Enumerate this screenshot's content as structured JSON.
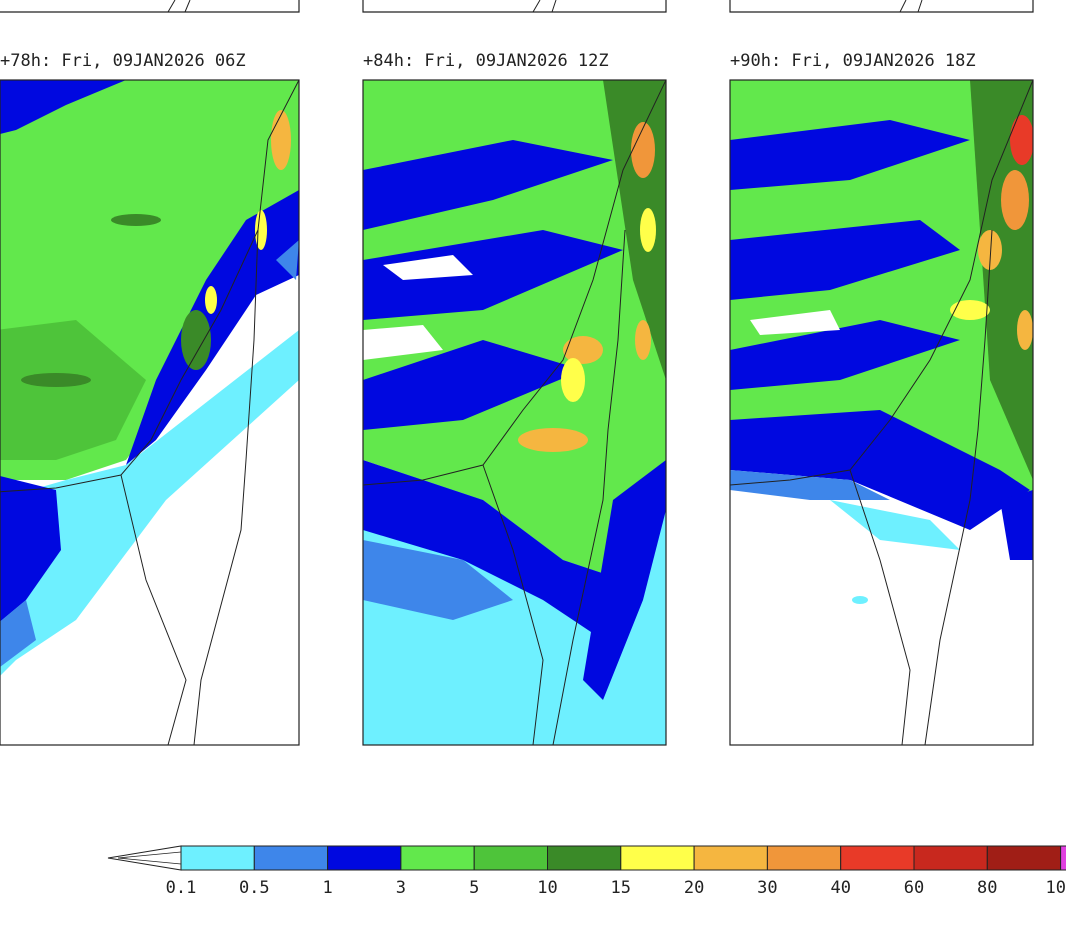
{
  "panels": [
    {
      "title": "+78h: Fri, 09JAN2026 06Z"
    },
    {
      "title": "+84h: Fri, 09JAN2026 12Z"
    },
    {
      "title": "+90h: Fri, 09JAN2026 18Z"
    }
  ],
  "legend": {
    "labels": [
      "0.1",
      "0.5",
      "1",
      "3",
      "5",
      "10",
      "15",
      "20",
      "30",
      "40",
      "60",
      "80",
      "10"
    ],
    "colors": [
      "#6ef0ff",
      "#3e86ea",
      "#0008e0",
      "#62e84c",
      "#4ec43a",
      "#3a8a28",
      "#ffff4a",
      "#f5b640",
      "#f0963a",
      "#e83a28",
      "#c8281e",
      "#a01e16",
      "#e040e0"
    ]
  }
}
